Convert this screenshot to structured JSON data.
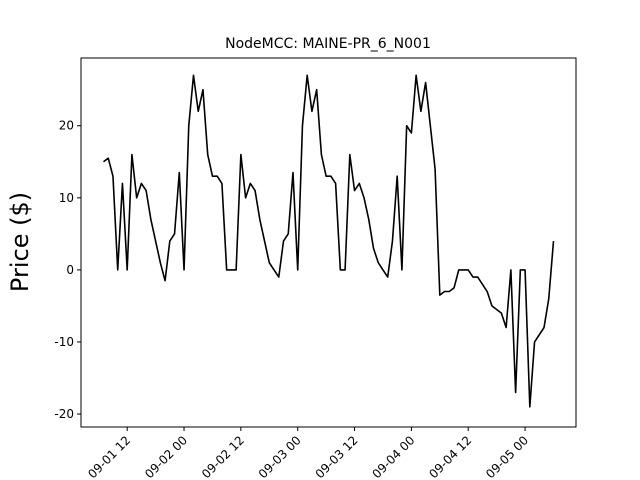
{
  "chart_data": {
    "type": "line",
    "title": "NodeMCC: MAINE-PR_6_N001",
    "y_label": "Price ($)",
    "x": [
      "09-01 07",
      "09-01 08",
      "09-01 09",
      "09-01 10",
      "09-01 11",
      "09-01 12",
      "09-01 13",
      "09-01 14",
      "09-01 15",
      "09-01 16",
      "09-01 17",
      "09-01 18",
      "09-01 19",
      "09-01 20",
      "09-01 21",
      "09-01 22",
      "09-01 23",
      "09-02 00",
      "09-02 01",
      "09-02 02",
      "09-02 03",
      "09-02 04",
      "09-02 05",
      "09-02 06",
      "09-02 07",
      "09-02 08",
      "09-02 09",
      "09-02 10",
      "09-02 11",
      "09-02 12",
      "09-02 13",
      "09-02 14",
      "09-02 15",
      "09-02 16",
      "09-02 17",
      "09-02 18",
      "09-02 19",
      "09-02 20",
      "09-02 21",
      "09-02 22",
      "09-02 23",
      "09-03 00",
      "09-03 01",
      "09-03 02",
      "09-03 03",
      "09-03 04",
      "09-03 05",
      "09-03 06",
      "09-03 07",
      "09-03 08",
      "09-03 09",
      "09-03 10",
      "09-03 11",
      "09-03 12",
      "09-03 13",
      "09-03 14",
      "09-03 15",
      "09-03 16",
      "09-03 17",
      "09-03 18",
      "09-03 19",
      "09-03 20",
      "09-03 21",
      "09-03 22",
      "09-03 23",
      "09-04 00",
      "09-04 01",
      "09-04 02",
      "09-04 03",
      "09-04 04",
      "09-04 05",
      "09-04 06",
      "09-04 07",
      "09-04 08",
      "09-04 09",
      "09-04 10",
      "09-04 11",
      "09-04 12",
      "09-04 13",
      "09-04 14",
      "09-04 15",
      "09-04 16",
      "09-04 17",
      "09-04 18",
      "09-04 19",
      "09-04 20",
      "09-04 21",
      "09-04 22",
      "09-04 23",
      "09-05 00",
      "09-05 01",
      "09-05 02",
      "09-05 03",
      "09-05 04",
      "09-05 05",
      "09-05 06"
    ],
    "series": [
      {
        "color": "#000000",
        "values": [
          15,
          15.5,
          13,
          0,
          12,
          0,
          16,
          10,
          12,
          11,
          7,
          4,
          1,
          -1.5,
          4,
          5,
          13.5,
          0,
          20,
          27,
          22,
          25,
          16,
          13,
          13,
          12,
          0,
          0,
          0,
          16,
          10,
          12,
          11,
          7,
          4,
          1,
          0,
          -1,
          4,
          5,
          13.5,
          0,
          20,
          27,
          22,
          25,
          16,
          13,
          13,
          12,
          0,
          0,
          16,
          11,
          12,
          10,
          7,
          3,
          1,
          0,
          -1,
          4,
          13,
          0,
          20,
          19,
          27,
          22,
          26,
          20,
          14,
          -3.5,
          -3,
          -3,
          -2.5,
          0,
          0,
          0,
          -1,
          -1,
          -2,
          -3,
          -5,
          -5.5,
          -6,
          -8,
          0,
          -17,
          0,
          0,
          -19,
          -10,
          -9,
          -8,
          -4,
          4
        ]
      }
    ],
    "xticks": [
      "09-01 12",
      "09-02 00",
      "09-02 12",
      "09-03 00",
      "09-03 12",
      "09-04 00",
      "09-04 12",
      "09-05 00"
    ],
    "ylim": [
      -21.8,
      29.4
    ],
    "yticks": [
      -20,
      -10,
      0,
      10,
      20
    ]
  }
}
